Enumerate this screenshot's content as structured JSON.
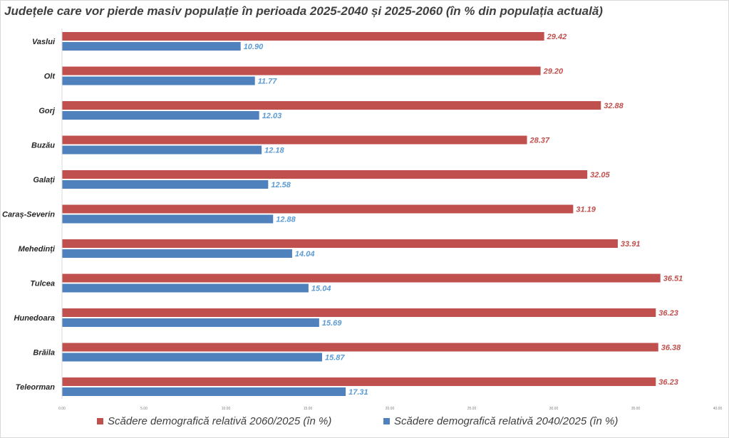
{
  "chart_data": {
    "type": "bar",
    "orientation": "horizontal",
    "title": "Județele care vor pierde masiv populație în perioada 2025-2040 și 2025-2060 (în % din populația actuală)",
    "categories": [
      "Vaslui",
      "Olt",
      "Gorj",
      "Buzău",
      "Galați",
      "Caraș-Severin",
      "Mehedinți",
      "Tulcea",
      "Hunedoara",
      "Brăila",
      "Teleorman"
    ],
    "series": [
      {
        "name": "Scădere demografică relativă 2060/2025 (în %)",
        "color": "#c0504d",
        "label_color": "#c0504d",
        "values": [
          29.42,
          29.2,
          32.88,
          28.37,
          32.05,
          31.19,
          33.91,
          36.51,
          36.23,
          36.38,
          36.23
        ],
        "labels": [
          "29.42",
          "29.20",
          "32.88",
          "28.37",
          "32.05",
          "31.19",
          "33.91",
          "36.51",
          "36.23",
          "36.38",
          "36.23"
        ]
      },
      {
        "name": "Scădere demografică  relativă 2040/2025 (în %)",
        "color": "#4f81bd",
        "label_color": "#5b9bd5",
        "values": [
          10.9,
          11.77,
          12.03,
          12.18,
          12.58,
          12.88,
          14.04,
          15.04,
          15.69,
          15.87,
          17.31
        ],
        "labels": [
          "10.90",
          "11.77",
          "12.03",
          "12.18",
          "12.58",
          "12.88",
          "14.04",
          "15.04",
          "15.69",
          "15.87",
          "17.31"
        ]
      }
    ],
    "xlim": [
      0,
      40
    ],
    "xticks": [
      "0.00",
      "5.00",
      "10.00",
      "15.00",
      "20.00",
      "25.00",
      "30.00",
      "35.00",
      "40.00"
    ],
    "grid": false,
    "legend": "bottom"
  }
}
